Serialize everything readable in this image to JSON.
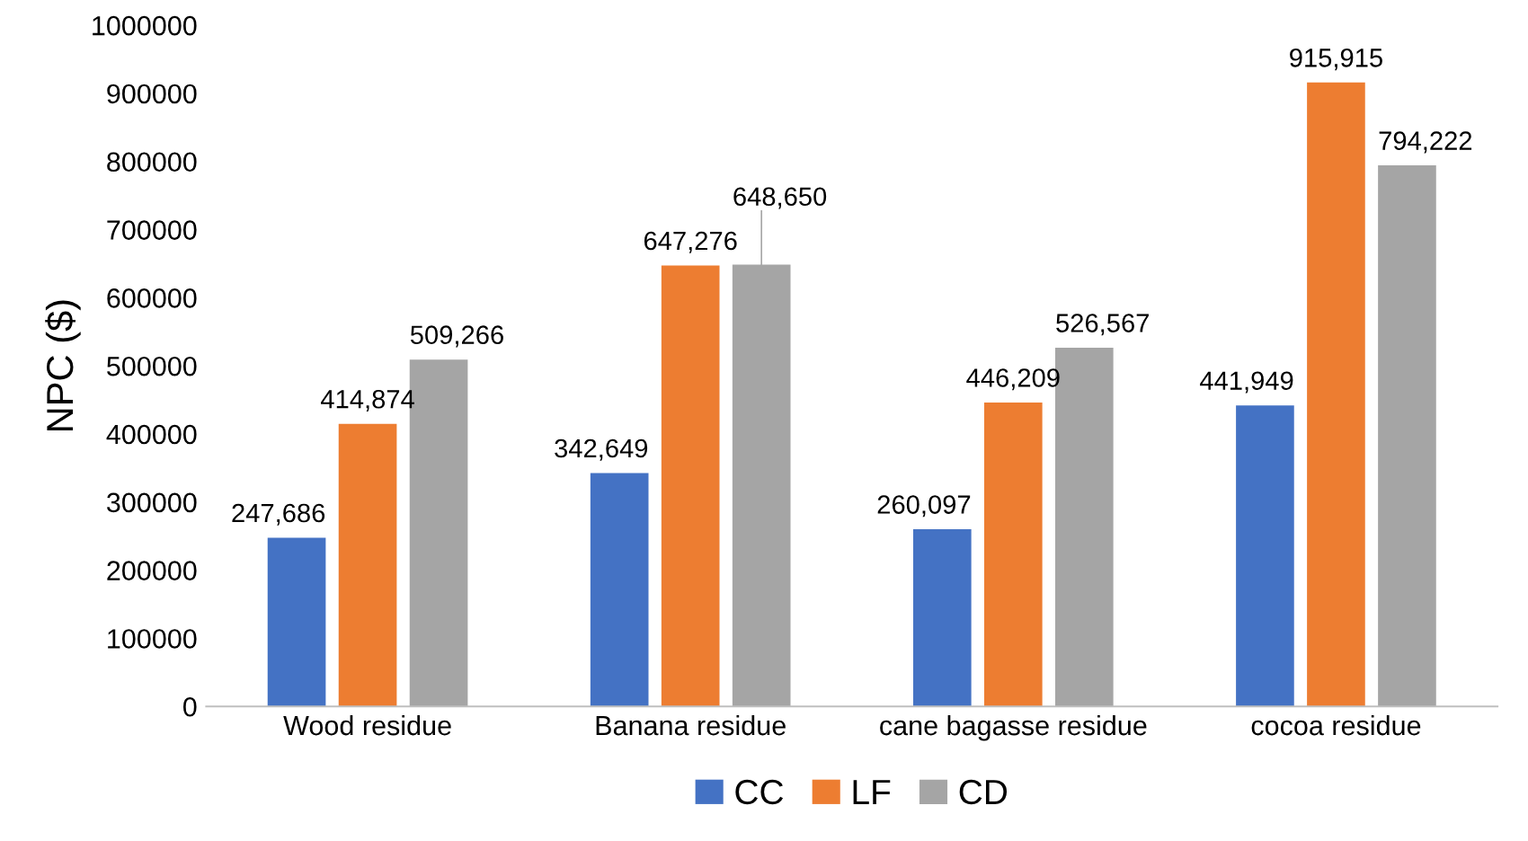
{
  "chart_data": {
    "type": "bar",
    "ylabel": "NPC ($)",
    "categories": [
      "Wood residue",
      "Banana residue",
      "cane bagasse residue",
      "cocoa residue"
    ],
    "series": [
      {
        "name": "CC",
        "color": "#4472c4",
        "values": [
          247686,
          342649,
          260097,
          441949
        ],
        "value_labels": [
          "247,686",
          "342,649",
          "260,097",
          "441,949"
        ]
      },
      {
        "name": "LF",
        "color": "#ed7d31",
        "values": [
          414874,
          647276,
          446209,
          915915
        ],
        "value_labels": [
          "414,874",
          "647,276",
          "446,209",
          "915,915"
        ]
      },
      {
        "name": "CD",
        "color": "#a5a5a5",
        "values": [
          509266,
          648650,
          526567,
          794222
        ],
        "value_labels": [
          "509,266",
          "648,650",
          "526,567",
          "794,222"
        ]
      }
    ],
    "ylim": [
      0,
      1000000
    ],
    "yticks": [
      0,
      100000,
      200000,
      300000,
      400000,
      500000,
      600000,
      700000,
      800000,
      900000,
      1000000
    ],
    "grid": false,
    "legend": "bottom"
  }
}
